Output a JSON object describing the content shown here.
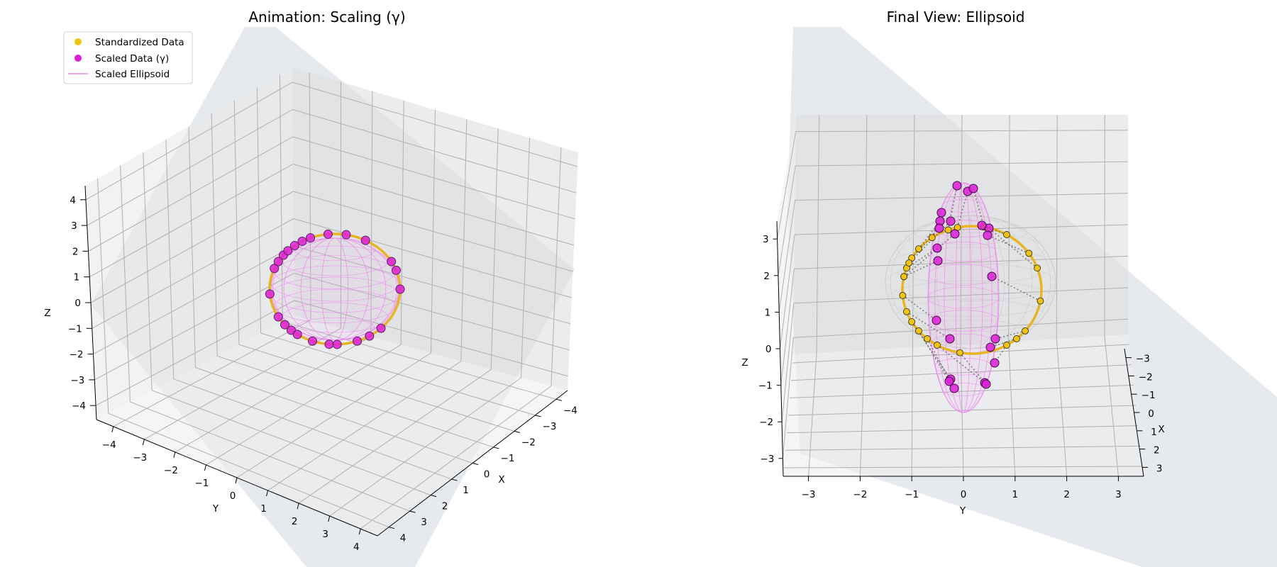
{
  "chart_data": [
    {
      "type": "scatter3d",
      "title": "Animation: Scaling (γ)",
      "xlabel": "X",
      "ylabel": "Y",
      "zlabel": "Z",
      "xlim": [
        -4.5,
        4.5
      ],
      "ylim": [
        -4.5,
        4.5
      ],
      "zlim": [
        -4.5,
        4.5
      ],
      "x_ticks": [
        "−4",
        "−3",
        "−2",
        "−1",
        "0",
        "1",
        "2",
        "3",
        "4"
      ],
      "y_ticks": [
        "−4",
        "−3",
        "−2",
        "−1",
        "0",
        "1",
        "2",
        "3",
        "4"
      ],
      "z_ticks": [
        "−4",
        "−3",
        "−2",
        "−1",
        "0",
        "1",
        "2",
        "3",
        "4"
      ],
      "grid": true,
      "legend_position": "upper-left",
      "legend": [
        {
          "label": "Standardized Data",
          "kind": "marker",
          "color": "#f2c40f"
        },
        {
          "label": "Scaled Data (γ)",
          "kind": "marker",
          "color": "#dd1fd8"
        },
        {
          "label": "Scaled Ellipsoid",
          "kind": "line",
          "color": "#ee88ee"
        }
      ],
      "series": [
        {
          "name": "Standardized Data",
          "color": "#f2c40f"
        },
        {
          "name": "Scaled Data (γ)",
          "color": "#dd1fd8"
        },
        {
          "name": "Scaled Ellipsoid",
          "color": "#ee88ee"
        }
      ],
      "ring_color": "#e8b422",
      "plane_color": "#cdd5dd"
    },
    {
      "type": "scatter3d",
      "title": "Final View: Ellipsoid",
      "xlabel": "X",
      "ylabel": "Y",
      "zlabel": "Z",
      "xlim": [
        -3.5,
        3.5
      ],
      "ylim": [
        -3.5,
        3.5
      ],
      "zlim": [
        -3.5,
        3.5
      ],
      "x_ticks": [
        "−3",
        "−2",
        "−1",
        "0",
        "1",
        "2",
        "3"
      ],
      "y_ticks": [
        "−3",
        "−2",
        "−1",
        "0",
        "1",
        "2",
        "3"
      ],
      "z_ticks": [
        "−3",
        "−2",
        "−1",
        "0",
        "1",
        "2",
        "3"
      ],
      "grid": true,
      "series": [
        {
          "name": "Standardized Data",
          "color": "#f2c40f"
        },
        {
          "name": "Scaled Data",
          "color": "#dd1fd8"
        },
        {
          "name": "Scaled Ellipsoid",
          "color": "#ee88ee"
        }
      ],
      "ring_color": "#e8b422",
      "plane_color": "#cdd5dd"
    }
  ]
}
